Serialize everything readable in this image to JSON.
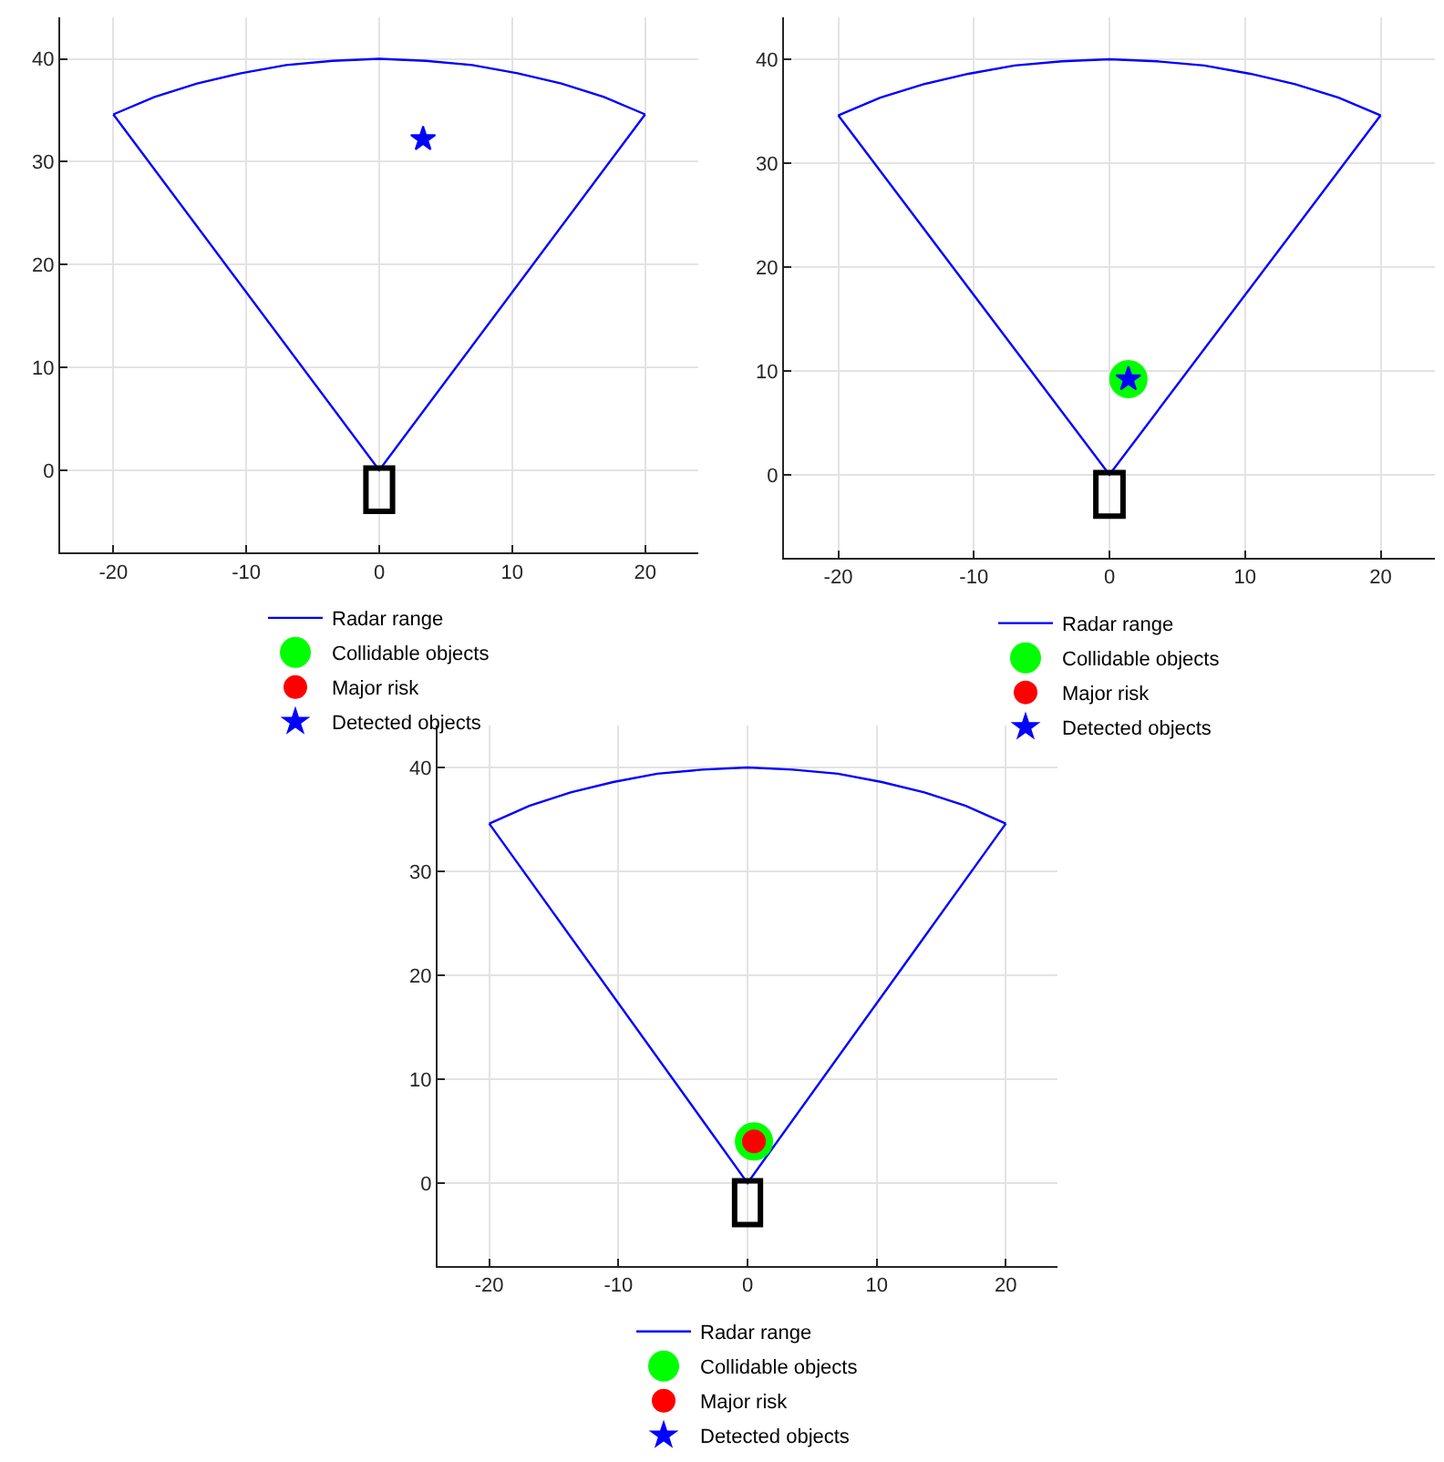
{
  "chart_data": [
    {
      "type": "line",
      "xlim": [
        -24,
        24
      ],
      "ylim": [
        -8,
        44
      ],
      "xticks": [
        -20,
        -10,
        0,
        10,
        20
      ],
      "yticks": [
        0,
        10,
        20,
        30,
        40
      ],
      "grid": true,
      "legend": "bottom",
      "series": [
        {
          "name": "Radar range",
          "marker": "none",
          "color": "#0000ff",
          "x": [
            -20,
            0,
            20
          ],
          "values": [
            34.6,
            0,
            34.6
          ]
        },
        {
          "name": "Collidable objects",
          "type": "scatter",
          "marker": "circle",
          "color": "#00ff00"
        },
        {
          "name": "Major risk",
          "type": "scatter",
          "marker": "circle",
          "color": "#ff0000"
        },
        {
          "name": "Detected objects",
          "type": "scatter",
          "marker": "star",
          "color": "#0000ff",
          "x": [
            3.3
          ],
          "values": [
            32.2
          ]
        },
        {
          "marker": "none",
          "color": "#0000ff",
          "x": [
            -20,
            -16.9,
            -13.7,
            -10.4,
            -7,
            -3.5,
            0,
            3.5,
            7,
            10.4,
            13.7,
            16.9,
            20
          ],
          "values": [
            34.6,
            36.3,
            37.6,
            38.6,
            39.4,
            39.8,
            40,
            39.8,
            39.4,
            38.6,
            37.6,
            36.3,
            34.6
          ]
        }
      ]
    },
    {
      "type": "line",
      "xlim": [
        -24,
        24
      ],
      "ylim": [
        -8,
        44
      ],
      "xticks": [
        -20,
        -10,
        0,
        10,
        20
      ],
      "yticks": [
        0,
        10,
        20,
        30,
        40
      ],
      "grid": true,
      "legend": "bottom",
      "series": [
        {
          "name": "Radar range",
          "marker": "none",
          "color": "#0000ff",
          "x": [
            -20,
            0,
            20
          ],
          "values": [
            34.6,
            0,
            34.6
          ]
        },
        {
          "name": "Collidable objects",
          "type": "scatter",
          "marker": "circle",
          "color": "#00ff00",
          "x": [
            1.4
          ],
          "values": [
            9.2
          ]
        },
        {
          "name": "Major risk",
          "type": "scatter",
          "marker": "circle",
          "color": "#ff0000"
        },
        {
          "name": "Detected objects",
          "type": "scatter",
          "marker": "star",
          "color": "#0000ff",
          "x": [
            1.4
          ],
          "values": [
            9.2
          ]
        },
        {
          "marker": "none",
          "color": "#0000ff",
          "x": [
            -20,
            -16.9,
            -13.7,
            -10.4,
            -7,
            -3.5,
            0,
            3.5,
            7,
            10.4,
            13.7,
            16.9,
            20
          ],
          "values": [
            34.6,
            36.3,
            37.6,
            38.6,
            39.4,
            39.8,
            40,
            39.8,
            39.4,
            38.6,
            37.6,
            36.3,
            34.6
          ]
        }
      ]
    },
    {
      "type": "line",
      "xlim": [
        -24,
        24
      ],
      "ylim": [
        -8,
        44
      ],
      "xticks": [
        -20,
        -10,
        0,
        10,
        20
      ],
      "yticks": [
        0,
        10,
        20,
        30,
        40
      ],
      "grid": true,
      "legend": "bottom",
      "series": [
        {
          "name": "Radar range",
          "marker": "none",
          "color": "#0000ff",
          "x": [
            -20,
            0,
            20
          ],
          "values": [
            34.6,
            0,
            34.6
          ]
        },
        {
          "name": "Collidable objects",
          "type": "scatter",
          "marker": "circle",
          "color": "#00ff00",
          "x": [
            0.5
          ],
          "values": [
            4
          ]
        },
        {
          "name": "Major risk",
          "type": "scatter",
          "marker": "circle",
          "color": "#ff0000",
          "x": [
            0.5
          ],
          "values": [
            4
          ]
        },
        {
          "name": "Detected objects",
          "type": "scatter",
          "marker": "star",
          "color": "#0000ff"
        },
        {
          "marker": "none",
          "color": "#0000ff",
          "x": [
            -20,
            -16.9,
            -13.7,
            -10.4,
            -7,
            -3.5,
            0,
            3.5,
            7,
            10.4,
            13.7,
            16.9,
            20
          ],
          "values": [
            34.6,
            36.3,
            37.6,
            38.6,
            39.4,
            39.8,
            40,
            39.8,
            39.4,
            38.6,
            37.6,
            36.3,
            34.6
          ]
        }
      ]
    }
  ]
}
